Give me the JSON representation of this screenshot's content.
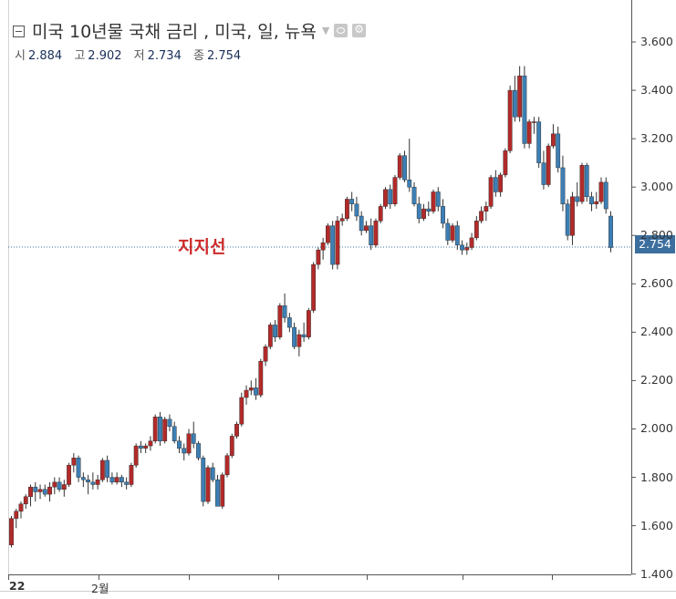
{
  "legend": {
    "title": "미국 10년물 국채 금리 , 미국, 일, 뉴욕"
  },
  "ohlc": {
    "open_label": "시",
    "open": "2.884",
    "high_label": "고",
    "high": "2.902",
    "low_label": "저",
    "low": "2.734",
    "close_label": "종",
    "close": "2.754"
  },
  "annotation": {
    "support_label": "지지선",
    "support_value": 2.754
  },
  "price_badge": "2.754",
  "colors": {
    "up": "#b22a2a",
    "down": "#3d7fb5",
    "wick": "#333333",
    "guide": "#3c6f9e",
    "annotation": "#cc2a2a"
  },
  "chart_data": {
    "type": "candlestick",
    "y_ticks": [
      "1.400",
      "1.600",
      "1.800",
      "2.000",
      "2.200",
      "2.400",
      "2.600",
      "2.800",
      "3.000",
      "3.200",
      "3.400",
      "3.600"
    ],
    "x_ticks": [
      "22",
      "2월"
    ],
    "ylim": [
      1.4,
      3.7
    ],
    "grid": false,
    "candles": [
      [
        1.52,
        1.64,
        1.51,
        1.63
      ],
      [
        1.63,
        1.67,
        1.59,
        1.66
      ],
      [
        1.66,
        1.7,
        1.63,
        1.69
      ],
      [
        1.69,
        1.73,
        1.67,
        1.72
      ],
      [
        1.72,
        1.77,
        1.68,
        1.76
      ],
      [
        1.76,
        1.78,
        1.7,
        1.74
      ],
      [
        1.74,
        1.77,
        1.71,
        1.75
      ],
      [
        1.75,
        1.77,
        1.72,
        1.73
      ],
      [
        1.73,
        1.78,
        1.7,
        1.76
      ],
      [
        1.76,
        1.8,
        1.73,
        1.78
      ],
      [
        1.78,
        1.8,
        1.74,
        1.75
      ],
      [
        1.75,
        1.79,
        1.72,
        1.77
      ],
      [
        1.77,
        1.86,
        1.76,
        1.85
      ],
      [
        1.85,
        1.9,
        1.82,
        1.88
      ],
      [
        1.88,
        1.89,
        1.78,
        1.8
      ],
      [
        1.8,
        1.82,
        1.76,
        1.79
      ],
      [
        1.79,
        1.81,
        1.73,
        1.78
      ],
      [
        1.78,
        1.82,
        1.75,
        1.77
      ],
      [
        1.77,
        1.81,
        1.75,
        1.79
      ],
      [
        1.79,
        1.88,
        1.78,
        1.87
      ],
      [
        1.87,
        1.89,
        1.78,
        1.8
      ],
      [
        1.8,
        1.82,
        1.77,
        1.78
      ],
      [
        1.78,
        1.82,
        1.77,
        1.8
      ],
      [
        1.8,
        1.81,
        1.76,
        1.78
      ],
      [
        1.78,
        1.8,
        1.75,
        1.77
      ],
      [
        1.77,
        1.86,
        1.76,
        1.85
      ],
      [
        1.85,
        1.94,
        1.84,
        1.93
      ],
      [
        1.93,
        1.95,
        1.9,
        1.92
      ],
      [
        1.92,
        1.94,
        1.9,
        1.93
      ],
      [
        1.93,
        1.97,
        1.91,
        1.95
      ],
      [
        1.95,
        2.06,
        1.94,
        2.05
      ],
      [
        2.05,
        2.07,
        1.93,
        1.95
      ],
      [
        1.95,
        2.05,
        1.94,
        2.04
      ],
      [
        2.04,
        2.06,
        1.99,
        2.01
      ],
      [
        2.01,
        2.03,
        1.94,
        1.95
      ],
      [
        1.95,
        1.97,
        1.9,
        1.92
      ],
      [
        1.92,
        1.94,
        1.87,
        1.9
      ],
      [
        1.9,
        2.0,
        1.89,
        1.98
      ],
      [
        1.98,
        2.03,
        1.92,
        1.94
      ],
      [
        1.94,
        1.95,
        1.87,
        1.88
      ],
      [
        1.88,
        1.89,
        1.68,
        1.7
      ],
      [
        1.7,
        1.85,
        1.69,
        1.84
      ],
      [
        1.84,
        1.86,
        1.78,
        1.79
      ],
      [
        1.79,
        1.81,
        1.68,
        1.68
      ],
      [
        1.68,
        1.82,
        1.67,
        1.81
      ],
      [
        1.81,
        1.9,
        1.8,
        1.89
      ],
      [
        1.89,
        1.98,
        1.88,
        1.97
      ],
      [
        1.97,
        2.03,
        1.96,
        2.02
      ],
      [
        2.02,
        2.15,
        2.01,
        2.13
      ],
      [
        2.13,
        2.18,
        2.1,
        2.16
      ],
      [
        2.16,
        2.2,
        2.14,
        2.17
      ],
      [
        2.17,
        2.21,
        2.12,
        2.14
      ],
      [
        2.14,
        2.29,
        2.13,
        2.28
      ],
      [
        2.28,
        2.35,
        2.26,
        2.34
      ],
      [
        2.34,
        2.44,
        2.33,
        2.43
      ],
      [
        2.43,
        2.45,
        2.36,
        2.38
      ],
      [
        2.38,
        2.52,
        2.37,
        2.51
      ],
      [
        2.51,
        2.56,
        2.44,
        2.46
      ],
      [
        2.46,
        2.48,
        2.4,
        2.42
      ],
      [
        2.42,
        2.44,
        2.33,
        2.34
      ],
      [
        2.34,
        2.41,
        2.3,
        2.39
      ],
      [
        2.39,
        2.44,
        2.36,
        2.38
      ],
      [
        2.38,
        2.5,
        2.37,
        2.49
      ],
      [
        2.49,
        2.69,
        2.48,
        2.68
      ],
      [
        2.68,
        2.75,
        2.66,
        2.74
      ],
      [
        2.74,
        2.79,
        2.7,
        2.77
      ],
      [
        2.77,
        2.85,
        2.76,
        2.84
      ],
      [
        2.84,
        2.86,
        2.66,
        2.68
      ],
      [
        2.68,
        2.88,
        2.66,
        2.86
      ],
      [
        2.86,
        2.89,
        2.84,
        2.87
      ],
      [
        2.87,
        2.96,
        2.86,
        2.95
      ],
      [
        2.95,
        2.98,
        2.9,
        2.93
      ],
      [
        2.93,
        2.96,
        2.86,
        2.88
      ],
      [
        2.88,
        2.9,
        2.8,
        2.82
      ],
      [
        2.82,
        2.86,
        2.81,
        2.84
      ],
      [
        2.84,
        2.87,
        2.74,
        2.76
      ],
      [
        2.76,
        2.87,
        2.75,
        2.86
      ],
      [
        2.86,
        2.93,
        2.85,
        2.92
      ],
      [
        2.92,
        3.0,
        2.91,
        2.99
      ],
      [
        2.99,
        3.01,
        2.91,
        2.93
      ],
      [
        2.93,
        3.05,
        2.92,
        3.04
      ],
      [
        3.04,
        3.14,
        3.03,
        3.13
      ],
      [
        3.13,
        3.15,
        3.02,
        3.03
      ],
      [
        3.03,
        3.2,
        2.98,
        3.0
      ],
      [
        3.0,
        3.02,
        2.92,
        2.93
      ],
      [
        2.93,
        2.96,
        2.85,
        2.87
      ],
      [
        2.87,
        2.93,
        2.86,
        2.91
      ],
      [
        2.91,
        2.94,
        2.88,
        2.9
      ],
      [
        2.9,
        2.99,
        2.89,
        2.98
      ],
      [
        2.98,
        3.0,
        2.9,
        2.92
      ],
      [
        2.92,
        2.95,
        2.83,
        2.85
      ],
      [
        2.85,
        2.87,
        2.76,
        2.78
      ],
      [
        2.78,
        2.85,
        2.77,
        2.84
      ],
      [
        2.84,
        2.86,
        2.74,
        2.76
      ],
      [
        2.76,
        2.78,
        2.72,
        2.74
      ],
      [
        2.74,
        2.77,
        2.72,
        2.75
      ],
      [
        2.75,
        2.81,
        2.74,
        2.79
      ],
      [
        2.79,
        2.88,
        2.78,
        2.86
      ],
      [
        2.86,
        2.92,
        2.85,
        2.9
      ],
      [
        2.9,
        2.94,
        2.86,
        2.92
      ],
      [
        2.92,
        3.05,
        2.91,
        3.04
      ],
      [
        3.04,
        3.07,
        2.96,
        2.98
      ],
      [
        2.98,
        3.06,
        2.96,
        3.05
      ],
      [
        3.05,
        3.16,
        3.04,
        3.15
      ],
      [
        3.15,
        3.42,
        3.14,
        3.4
      ],
      [
        3.4,
        3.46,
        3.27,
        3.29
      ],
      [
        3.29,
        3.5,
        3.27,
        3.46
      ],
      [
        3.46,
        3.5,
        3.16,
        3.18
      ],
      [
        3.18,
        3.28,
        3.16,
        3.27
      ],
      [
        3.27,
        3.29,
        3.22,
        3.27
      ],
      [
        3.27,
        3.29,
        3.08,
        3.1
      ],
      [
        3.1,
        3.15,
        2.99,
        3.01
      ],
      [
        3.01,
        3.18,
        3.0,
        3.17
      ],
      [
        3.17,
        3.26,
        3.16,
        3.22
      ],
      [
        3.22,
        3.25,
        3.06,
        3.08
      ],
      [
        3.08,
        3.13,
        2.9,
        2.93
      ],
      [
        2.93,
        2.95,
        2.78,
        2.8
      ],
      [
        2.8,
        2.98,
        2.76,
        2.96
      ],
      [
        2.96,
        3.02,
        2.92,
        2.94
      ],
      [
        2.94,
        3.1,
        2.93,
        3.09
      ],
      [
        3.09,
        3.1,
        2.94,
        2.96
      ],
      [
        2.96,
        2.98,
        2.9,
        2.93
      ],
      [
        2.93,
        2.98,
        2.91,
        2.94
      ],
      [
        2.94,
        3.04,
        2.93,
        3.02
      ],
      [
        3.02,
        3.04,
        2.89,
        2.91
      ],
      [
        2.88,
        2.9,
        2.73,
        2.75
      ]
    ]
  }
}
